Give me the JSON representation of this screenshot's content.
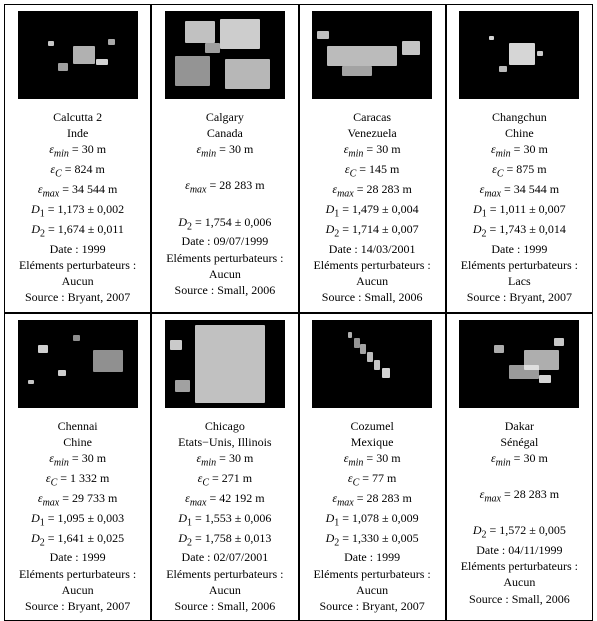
{
  "symbols": {
    "eps_min": "ε",
    "eps_c": "ε",
    "eps_max": "ε",
    "D1": "D",
    "D2": "D"
  },
  "labels": {
    "date": "Date",
    "perturb": "Eléments perturbateurs :",
    "source": "Source"
  },
  "cells": [
    {
      "city": "Calcutta 2",
      "country": "Inde",
      "eps_min": "30 m",
      "eps_c": "824 m",
      "eps_max": "34 544 m",
      "D1": "1,173 ± 0,002",
      "D2": "1,674 ± 0,011",
      "date": "1999",
      "perturb": "Aucun",
      "source": "Bryant, 2007",
      "specks": [
        [
          55,
          35,
          22,
          18
        ],
        [
          40,
          52,
          10,
          8
        ],
        [
          78,
          48,
          12,
          6
        ],
        [
          30,
          30,
          6,
          5
        ],
        [
          90,
          28,
          7,
          6
        ]
      ]
    },
    {
      "city": "Calgary",
      "country": "Canada",
      "eps_min": "30 m",
      "eps_c": "",
      "eps_max": "28 283 m",
      "D1": "",
      "D2": "1,754 ± 0,006",
      "date": "09/07/1999",
      "perturb": "Aucun",
      "source": "Small, 2006",
      "specks": [
        [
          20,
          10,
          30,
          22
        ],
        [
          55,
          8,
          40,
          30
        ],
        [
          10,
          45,
          35,
          30
        ],
        [
          60,
          48,
          45,
          30
        ],
        [
          40,
          32,
          15,
          10
        ]
      ]
    },
    {
      "city": "Caracas",
      "country": "Venezuela",
      "eps_min": "30 m",
      "eps_c": "145 m",
      "eps_max": "28 283 m",
      "D1": "1,479 ± 0,004",
      "D2": "1,714 ± 0,007",
      "date": "14/03/2001",
      "perturb": "Aucun",
      "source": "Small, 2006",
      "specks": [
        [
          15,
          35,
          70,
          20
        ],
        [
          90,
          30,
          18,
          14
        ],
        [
          30,
          55,
          30,
          10
        ],
        [
          5,
          20,
          12,
          8
        ]
      ]
    },
    {
      "city": "Changchun",
      "country": "Chine",
      "eps_min": "30 m",
      "eps_c": "875 m",
      "eps_max": "34 544 m",
      "D1": "1,011 ± 0,007",
      "D2": "1,743 ± 0,014",
      "date": "1999",
      "perturb": "Lacs",
      "source": "Bryant, 2007",
      "specks": [
        [
          50,
          32,
          26,
          22
        ],
        [
          40,
          55,
          8,
          6
        ],
        [
          78,
          40,
          6,
          5
        ],
        [
          30,
          25,
          5,
          4
        ]
      ]
    },
    {
      "city": "Chennai",
      "country": "Chine",
      "eps_min": "30 m",
      "eps_c": "1 332 m",
      "eps_max": "29 733 m",
      "D1": "1,095 ± 0,003",
      "D2": "1,641 ± 0,025",
      "date": "1999",
      "perturb": "Aucun",
      "source": "Bryant, 2007",
      "specks": [
        [
          20,
          25,
          10,
          8
        ],
        [
          40,
          50,
          8,
          6
        ],
        [
          75,
          30,
          30,
          22
        ],
        [
          55,
          15,
          7,
          6
        ],
        [
          10,
          60,
          6,
          4
        ]
      ]
    },
    {
      "city": "Chicago",
      "country": "Etats−Unis, Illinois",
      "eps_min": "30 m",
      "eps_c": "271 m",
      "eps_max": "42 192 m",
      "D1": "1,553 ± 0,006",
      "D2": "1,758 ± 0,013",
      "date": "02/07/2001",
      "perturb": "Aucun",
      "source": "Small, 2006",
      "specks": [
        [
          30,
          5,
          70,
          78
        ],
        [
          10,
          60,
          15,
          12
        ],
        [
          5,
          20,
          12,
          10
        ]
      ]
    },
    {
      "city": "Cozumel",
      "country": "Mexique",
      "eps_min": "30 m",
      "eps_c": "77 m",
      "eps_max": "28 283 m",
      "D1": "1,078 ± 0,009",
      "D2": "1,330 ± 0,005",
      "date": "1999",
      "perturb": "Aucun",
      "source": "Bryant, 2007",
      "specks": [
        [
          42,
          18,
          6,
          10
        ],
        [
          48,
          24,
          6,
          10
        ],
        [
          55,
          32,
          6,
          10
        ],
        [
          62,
          40,
          6,
          10
        ],
        [
          70,
          48,
          8,
          10
        ],
        [
          36,
          12,
          4,
          6
        ]
      ]
    },
    {
      "city": "Dakar",
      "country": "Sénégal",
      "eps_min": "30 m",
      "eps_c": "",
      "eps_max": "28 283 m",
      "D1": "",
      "D2": "1,572 ± 0,005",
      "date": "04/11/1999",
      "perturb": "Aucun",
      "source": "Small, 2006",
      "specks": [
        [
          65,
          30,
          35,
          20
        ],
        [
          50,
          45,
          30,
          14
        ],
        [
          35,
          25,
          10,
          8
        ],
        [
          95,
          18,
          10,
          8
        ],
        [
          80,
          55,
          12,
          8
        ]
      ]
    }
  ]
}
